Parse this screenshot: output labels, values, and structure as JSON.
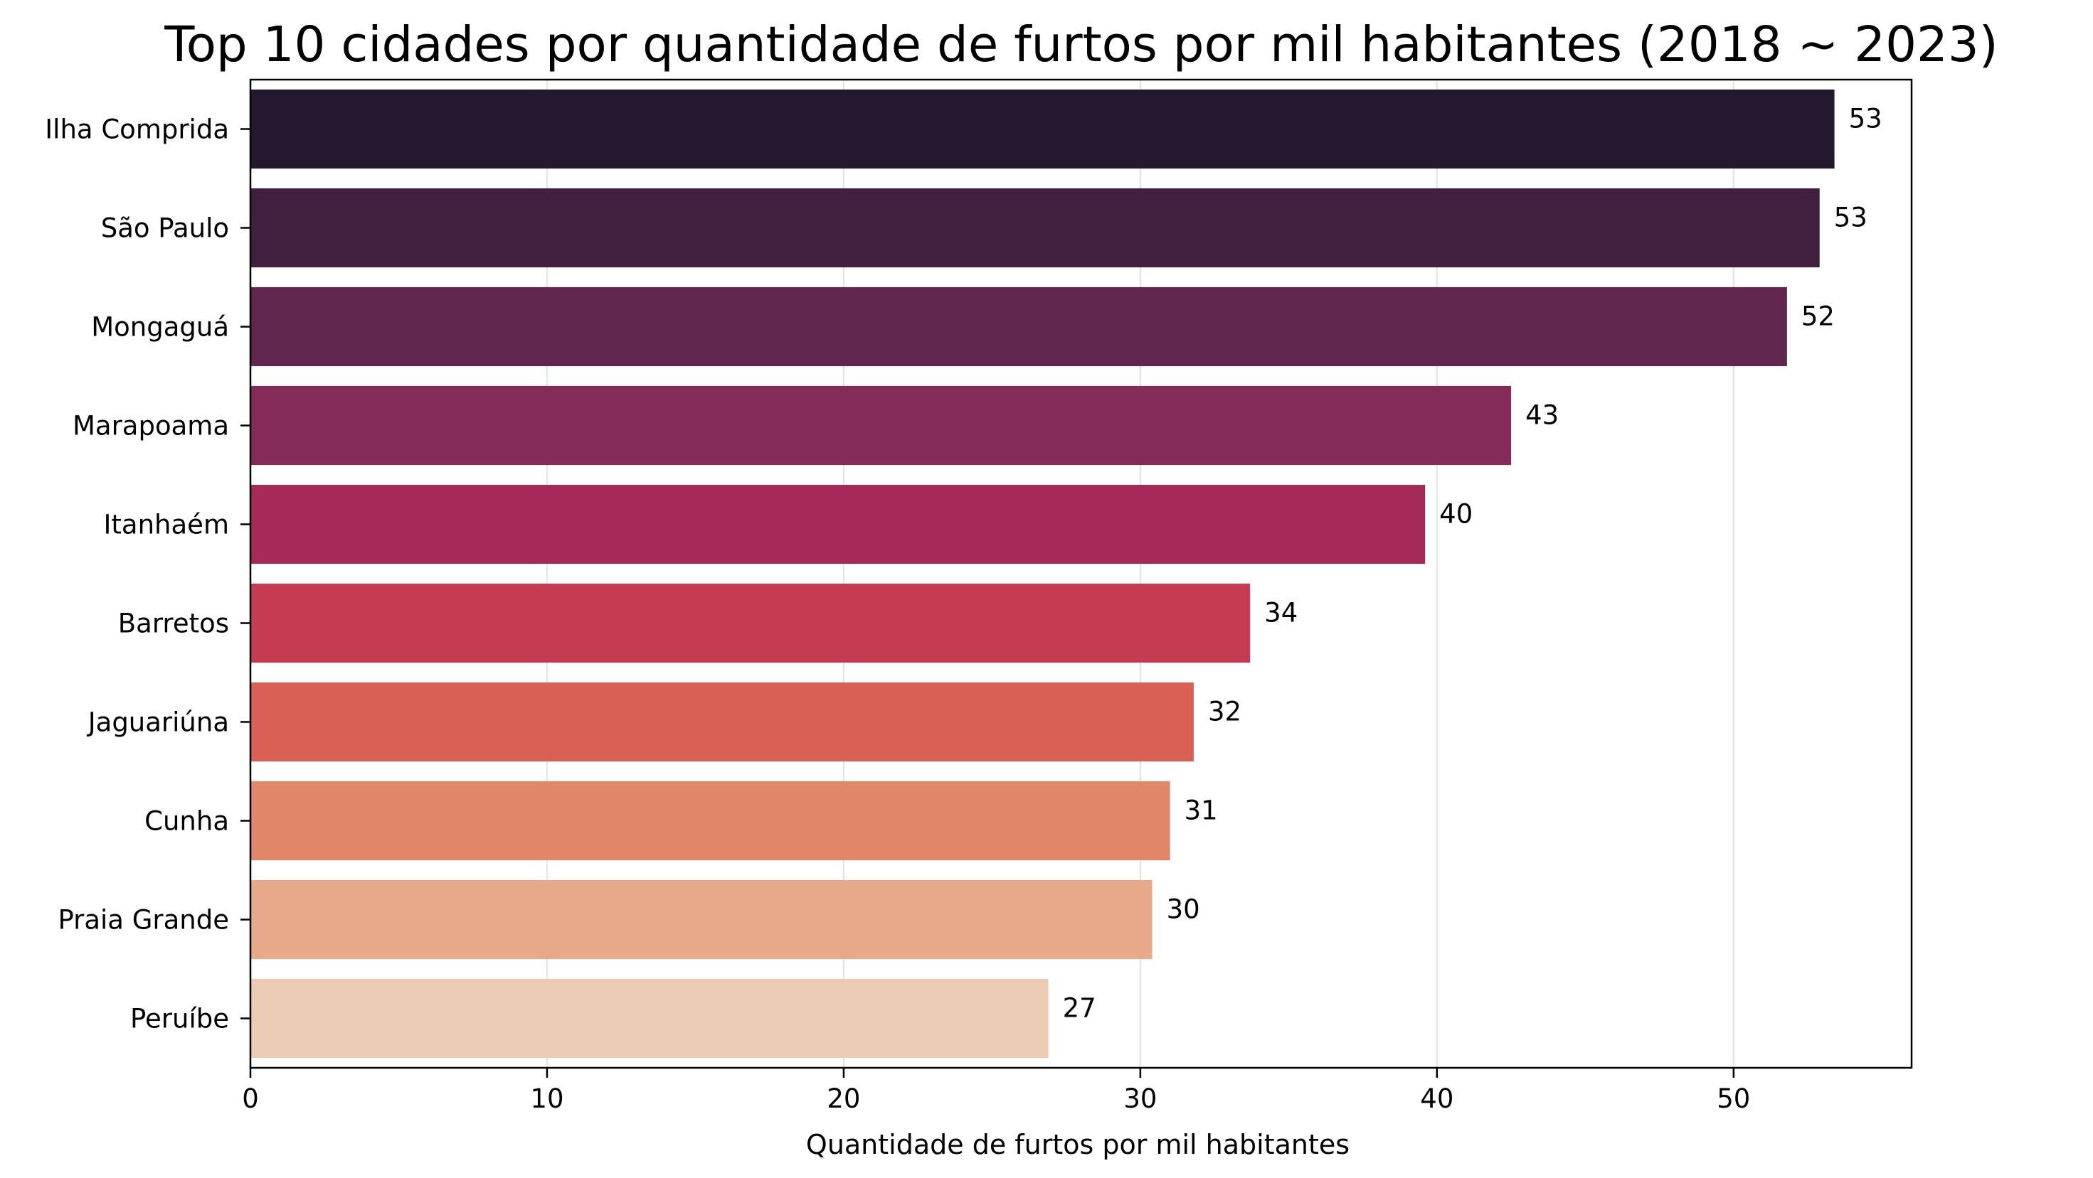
{
  "chart_data": {
    "type": "bar",
    "orientation": "horizontal",
    "title": "Top 10 cidades por quantidade de furtos por mil habitantes (2018 ~ 2023)",
    "xlabel": "Quantidade de furtos por mil habitantes",
    "ylabel": "",
    "xlim": [
      0,
      56
    ],
    "xticks": [
      0,
      10,
      20,
      30,
      40,
      50
    ],
    "grid": "x",
    "categories": [
      "Ilha Comprida",
      "São Paulo",
      "Mongaguá",
      "Marapoama",
      "Itanhaém",
      "Barretos",
      "Jaguariúna",
      "Cunha",
      "Praia Grande",
      "Peruíbe"
    ],
    "values": [
      53.4,
      52.9,
      51.8,
      42.5,
      39.6,
      33.7,
      31.8,
      31.0,
      30.4,
      26.9
    ],
    "data_labels": [
      "53",
      "53",
      "52",
      "43",
      "40",
      "34",
      "32",
      "31",
      "30",
      "27"
    ],
    "colors": [
      "#24182e",
      "#41203f",
      "#60264e",
      "#842b59",
      "#a42a57",
      "#c53c52",
      "#d86055",
      "#e18769",
      "#e7a98a",
      "#eccbb4"
    ]
  }
}
